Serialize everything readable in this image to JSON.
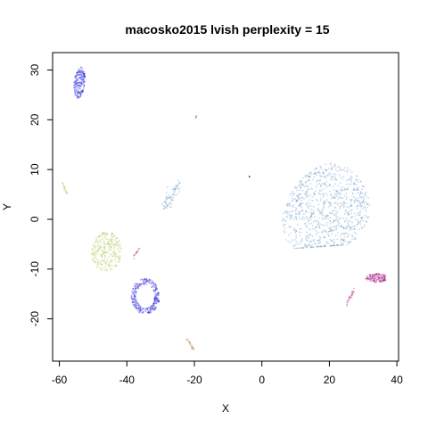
{
  "chart_data": {
    "type": "scatter",
    "title": "macosko2015 lvish perplexity = 15",
    "xlabel": "X",
    "ylabel": "Y",
    "xlim": [
      -62,
      40.5
    ],
    "ylim": [
      -28.5,
      33.5
    ],
    "x_ticks": [
      -60,
      -40,
      -20,
      0,
      20,
      40
    ],
    "y_ticks": [
      -20,
      -10,
      0,
      10,
      20,
      30
    ],
    "x_tick_labels": [
      "-60",
      "-40",
      "-20",
      "0",
      "20",
      "40"
    ],
    "y_tick_labels": [
      "-20",
      "-10",
      "0",
      "10",
      "20",
      "30"
    ],
    "grid": false,
    "legend": "none",
    "point_opacity": 0.35,
    "clusters": [
      {
        "shape": "blob",
        "color": "#5b8ec4",
        "cx": 19,
        "cy": 2.5,
        "rx": 13,
        "ry": 9,
        "n": 900
      },
      {
        "shape": "ellipse",
        "color": "#1e1edc",
        "cx": -54,
        "cy": 27.5,
        "rx": 1.6,
        "ry": 3.2,
        "angle": -10,
        "n": 200
      },
      {
        "shape": "ring",
        "color": "#2b1fd8",
        "cx": -34.5,
        "cy": -15.5,
        "rx": 4.2,
        "ry": 3.6,
        "angle": 0,
        "n": 320
      },
      {
        "shape": "ellipse",
        "color": "#adc94f",
        "cx": -46,
        "cy": -6.5,
        "rx": 4.5,
        "ry": 4,
        "angle": 0,
        "n": 300
      },
      {
        "shape": "ellipse",
        "color": "#9e0f78",
        "cx": 34,
        "cy": -11.8,
        "rx": 3.2,
        "ry": 0.9,
        "angle": 0,
        "n": 140
      },
      {
        "shape": "line",
        "color": "#5b8ec4",
        "x1": -28.8,
        "y1": 2.5,
        "x2": -24.3,
        "y2": 7.5,
        "w": 0.7,
        "n": 70
      },
      {
        "shape": "line",
        "color": "#a7c55a",
        "x1": -59.5,
        "y1": 7.5,
        "x2": -57.6,
        "y2": 5.2,
        "w": 0.15,
        "n": 20
      },
      {
        "shape": "line",
        "color": "#b9742e",
        "x1": -22.2,
        "y1": -24,
        "x2": -20,
        "y2": -26.5,
        "w": 0.12,
        "n": 22
      },
      {
        "shape": "line",
        "color": "#b04545",
        "x1": -37.8,
        "y1": -7.5,
        "x2": -36,
        "y2": -5.5,
        "w": 0.12,
        "n": 16
      },
      {
        "shape": "line",
        "color": "#9e0f78",
        "x1": 25,
        "y1": -17.5,
        "x2": 27.2,
        "y2": -14,
        "w": 0.18,
        "n": 24
      },
      {
        "shape": "line",
        "color": "#c4522e",
        "x1": -19.7,
        "y1": 20.3,
        "x2": -19.4,
        "y2": 20.8,
        "w": 0.05,
        "n": 6
      },
      {
        "shape": "dot",
        "color": "#222222",
        "cx": -3.7,
        "cy": 8.6,
        "n": 1
      }
    ]
  }
}
